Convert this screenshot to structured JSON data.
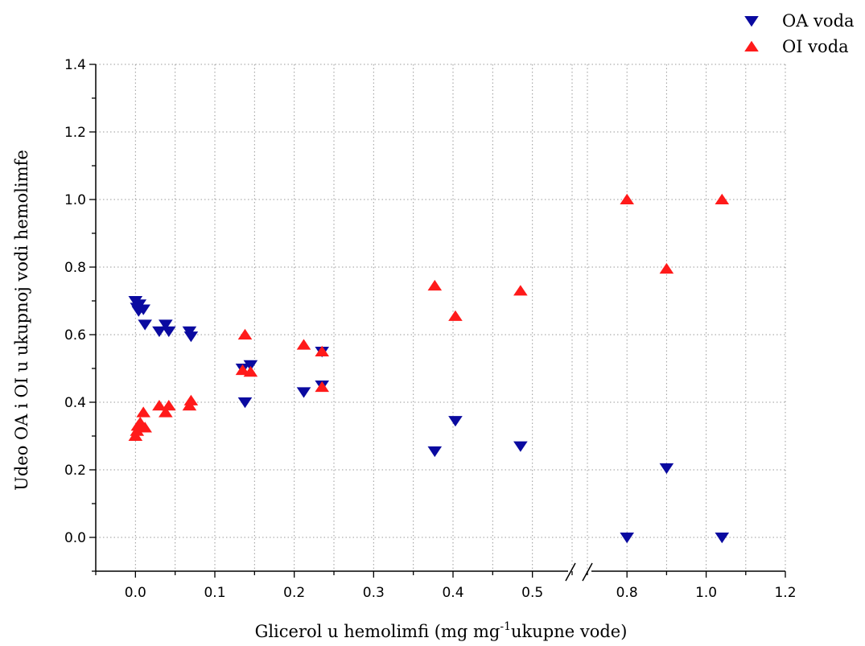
{
  "chart_data": {
    "type": "scatter",
    "xlabel": "Glicerol u hemolimfi (mg mg",
    "xlabel_sup": "-1",
    "xlabel_tail": "ukupne vode)",
    "ylabel": "Udeo OA i OI u ukupnoj vodi hemolimfe",
    "ylim": [
      -0.1,
      1.4
    ],
    "y_ticks": [
      "0.0",
      "0.2",
      "0.4",
      "0.6",
      "0.8",
      "1.0",
      "1.2",
      "1.4"
    ],
    "x_axis_break": true,
    "x_segments": [
      {
        "range": [
          -0.05,
          0.55
        ],
        "ticks": [
          "0.0",
          "0.1",
          "0.2",
          "0.3",
          "0.4",
          "0.5"
        ]
      },
      {
        "range": [
          0.7,
          1.2
        ],
        "ticks": [
          "0.8",
          "1.0",
          "1.2"
        ]
      }
    ],
    "grid": true,
    "legend_position": "top-right",
    "series": [
      {
        "name": "OA voda",
        "marker": "triangle-down",
        "color": "#0a0aa0",
        "points": [
          [
            0.0,
            0.7
          ],
          [
            0.002,
            0.68
          ],
          [
            0.005,
            0.69
          ],
          [
            0.004,
            0.67
          ],
          [
            0.01,
            0.675
          ],
          [
            0.012,
            0.63
          ],
          [
            0.03,
            0.61
          ],
          [
            0.038,
            0.63
          ],
          [
            0.042,
            0.61
          ],
          [
            0.068,
            0.61
          ],
          [
            0.07,
            0.595
          ],
          [
            0.135,
            0.5
          ],
          [
            0.138,
            0.4
          ],
          [
            0.145,
            0.51
          ],
          [
            0.212,
            0.43
          ],
          [
            0.235,
            0.55
          ],
          [
            0.235,
            0.45
          ],
          [
            0.377,
            0.255
          ],
          [
            0.403,
            0.345
          ],
          [
            0.485,
            0.27
          ],
          [
            0.8,
            0.0
          ],
          [
            0.9,
            0.205
          ],
          [
            1.04,
            0.0
          ]
        ]
      },
      {
        "name": "OI voda",
        "marker": "triangle-up",
        "color": "#ff1a1a",
        "points": [
          [
            0.0,
            0.3
          ],
          [
            0.002,
            0.315
          ],
          [
            0.003,
            0.33
          ],
          [
            0.006,
            0.34
          ],
          [
            0.01,
            0.37
          ],
          [
            0.012,
            0.325
          ],
          [
            0.03,
            0.39
          ],
          [
            0.038,
            0.37
          ],
          [
            0.042,
            0.39
          ],
          [
            0.068,
            0.39
          ],
          [
            0.07,
            0.405
          ],
          [
            0.135,
            0.495
          ],
          [
            0.138,
            0.6
          ],
          [
            0.145,
            0.49
          ],
          [
            0.212,
            0.57
          ],
          [
            0.235,
            0.55
          ],
          [
            0.235,
            0.445
          ],
          [
            0.377,
            0.745
          ],
          [
            0.403,
            0.655
          ],
          [
            0.485,
            0.73
          ],
          [
            0.8,
            1.0
          ],
          [
            0.9,
            0.795
          ],
          [
            1.04,
            1.0
          ]
        ]
      }
    ]
  }
}
